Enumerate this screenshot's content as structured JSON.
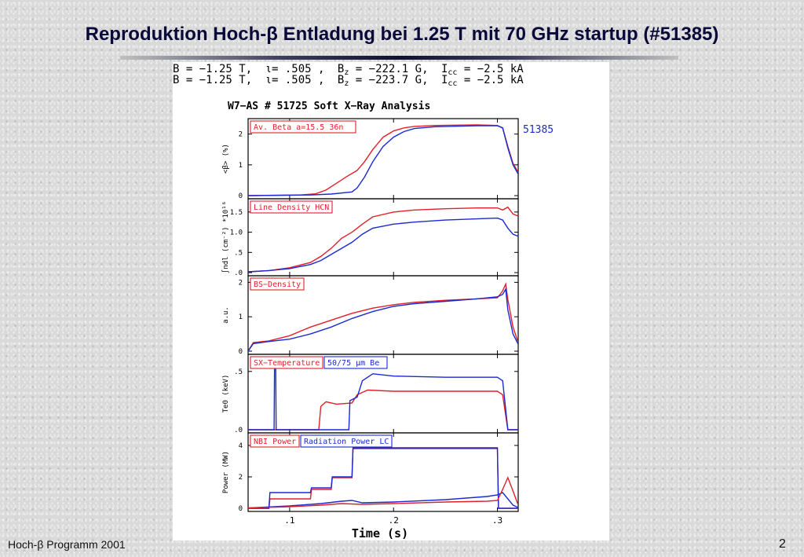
{
  "slide": {
    "title": "Reproduktion Hoch-β Entladung bei 1.25 T mit 70 GHz startup (#51385)",
    "footer_left": "Hoch-β Programm 2001",
    "page_number": "2"
  },
  "header_lines": [
    {
      "b": "B = −1.25  T,",
      "iota": "ι= .505  ,",
      "bz": "B",
      "bz_sub": "z",
      "bz_val": " = −222.1 G,",
      "icc": "I",
      "icc_sub": "cc",
      "icc_val": " = −2.5   kA"
    },
    {
      "b": "B = −1.25  T,",
      "iota": "ι= .505  ,",
      "bz": "B",
      "bz_sub": "z",
      "bz_val": " = −223.7 G,",
      "icc": "I",
      "icc_sub": "cc",
      "icc_val": " = −2.5   kA"
    }
  ],
  "colors": {
    "red": "#e0202a",
    "blue": "#1a2ad0",
    "frame": "#000000"
  },
  "chart_data": {
    "type": "line",
    "title": "W7−AS # 51725   Soft X−Ray Analysis",
    "xlabel": "Time (s)",
    "xlim": [
      0.06,
      0.32
    ],
    "xticks": [
      ".1",
      ".2",
      ".3"
    ],
    "xtick_values": [
      0.1,
      0.2,
      0.3
    ],
    "blue_label": "51385",
    "panels": [
      {
        "id": "beta",
        "ylabel": "<β> (%)",
        "ylim": [
          0,
          2.4
        ],
        "yticks": [
          {
            "v": 0,
            "t": "0"
          },
          {
            "v": 1,
            "t": "1"
          },
          {
            "v": 2,
            "t": "2"
          }
        ],
        "labels": [
          {
            "text": "Av. Beta  a=15.5  36n",
            "color": "red"
          }
        ],
        "series": [
          {
            "name": "red",
            "color": "red",
            "points": [
              [
                0.06,
                0.0
              ],
              [
                0.11,
                0.02
              ],
              [
                0.125,
                0.06
              ],
              [
                0.135,
                0.18
              ],
              [
                0.145,
                0.4
              ],
              [
                0.155,
                0.62
              ],
              [
                0.165,
                0.82
              ],
              [
                0.172,
                1.1
              ],
              [
                0.18,
                1.5
              ],
              [
                0.19,
                1.9
              ],
              [
                0.2,
                2.1
              ],
              [
                0.21,
                2.2
              ],
              [
                0.22,
                2.25
              ],
              [
                0.24,
                2.28
              ],
              [
                0.28,
                2.3
              ],
              [
                0.3,
                2.28
              ],
              [
                0.305,
                2.2
              ],
              [
                0.31,
                1.6
              ],
              [
                0.315,
                1.05
              ],
              [
                0.32,
                0.75
              ]
            ]
          },
          {
            "name": "blue",
            "color": "blue",
            "points": [
              [
                0.06,
                0.0
              ],
              [
                0.12,
                0.02
              ],
              [
                0.14,
                0.05
              ],
              [
                0.16,
                0.12
              ],
              [
                0.165,
                0.25
              ],
              [
                0.172,
                0.6
              ],
              [
                0.18,
                1.1
              ],
              [
                0.19,
                1.6
              ],
              [
                0.2,
                1.9
              ],
              [
                0.21,
                2.08
              ],
              [
                0.22,
                2.18
              ],
              [
                0.24,
                2.24
              ],
              [
                0.28,
                2.27
              ],
              [
                0.3,
                2.27
              ],
              [
                0.305,
                2.2
              ],
              [
                0.31,
                1.55
              ],
              [
                0.315,
                1.0
              ],
              [
                0.32,
                0.7
              ]
            ]
          }
        ]
      },
      {
        "id": "density",
        "ylabel": "∫ndl (cm⁻²) *10¹⁶",
        "ylim": [
          0,
          1.75
        ],
        "yticks": [
          {
            "v": 0,
            "t": ".0"
          },
          {
            "v": 0.5,
            "t": ".5"
          },
          {
            "v": 1.0,
            "t": "1.0"
          },
          {
            "v": 1.5,
            "t": "1.5"
          }
        ],
        "labels": [
          {
            "text": "Line Density HCN",
            "color": "red"
          }
        ],
        "series": [
          {
            "name": "red",
            "color": "red",
            "points": [
              [
                0.06,
                0.02
              ],
              [
                0.08,
                0.05
              ],
              [
                0.1,
                0.12
              ],
              [
                0.12,
                0.25
              ],
              [
                0.13,
                0.4
              ],
              [
                0.14,
                0.6
              ],
              [
                0.15,
                0.85
              ],
              [
                0.16,
                1.0
              ],
              [
                0.17,
                1.2
              ],
              [
                0.18,
                1.38
              ],
              [
                0.2,
                1.5
              ],
              [
                0.22,
                1.55
              ],
              [
                0.25,
                1.58
              ],
              [
                0.28,
                1.6
              ],
              [
                0.3,
                1.6
              ],
              [
                0.305,
                1.55
              ],
              [
                0.31,
                1.62
              ],
              [
                0.315,
                1.45
              ],
              [
                0.32,
                1.4
              ]
            ]
          },
          {
            "name": "blue",
            "color": "blue",
            "points": [
              [
                0.06,
                0.02
              ],
              [
                0.08,
                0.05
              ],
              [
                0.1,
                0.1
              ],
              [
                0.12,
                0.2
              ],
              [
                0.13,
                0.3
              ],
              [
                0.14,
                0.45
              ],
              [
                0.15,
                0.6
              ],
              [
                0.16,
                0.75
              ],
              [
                0.17,
                0.95
              ],
              [
                0.18,
                1.1
              ],
              [
                0.2,
                1.2
              ],
              [
                0.22,
                1.25
              ],
              [
                0.25,
                1.3
              ],
              [
                0.28,
                1.33
              ],
              [
                0.3,
                1.35
              ],
              [
                0.305,
                1.3
              ],
              [
                0.31,
                1.1
              ],
              [
                0.315,
                0.95
              ],
              [
                0.32,
                0.9
              ]
            ]
          }
        ]
      },
      {
        "id": "bs",
        "ylabel": "a.u.",
        "ylim": [
          0,
          2.1
        ],
        "yticks": [
          {
            "v": 0,
            "t": "0"
          },
          {
            "v": 1,
            "t": "1"
          },
          {
            "v": 2,
            "t": "2"
          }
        ],
        "labels": [
          {
            "text": "BS−Density",
            "color": "red"
          }
        ],
        "series": [
          {
            "name": "red",
            "color": "red",
            "points": [
              [
                0.06,
                0.0
              ],
              [
                0.065,
                0.25
              ],
              [
                0.08,
                0.3
              ],
              [
                0.1,
                0.45
              ],
              [
                0.12,
                0.7
              ],
              [
                0.14,
                0.9
              ],
              [
                0.16,
                1.1
              ],
              [
                0.18,
                1.25
              ],
              [
                0.2,
                1.35
              ],
              [
                0.22,
                1.42
              ],
              [
                0.25,
                1.48
              ],
              [
                0.28,
                1.52
              ],
              [
                0.3,
                1.55
              ],
              [
                0.305,
                1.75
              ],
              [
                0.308,
                1.95
              ],
              [
                0.31,
                1.5
              ],
              [
                0.315,
                0.7
              ],
              [
                0.32,
                0.25
              ]
            ]
          },
          {
            "name": "blue",
            "color": "blue",
            "points": [
              [
                0.06,
                0.0
              ],
              [
                0.065,
                0.22
              ],
              [
                0.08,
                0.28
              ],
              [
                0.1,
                0.35
              ],
              [
                0.12,
                0.5
              ],
              [
                0.14,
                0.7
              ],
              [
                0.16,
                0.95
              ],
              [
                0.18,
                1.15
              ],
              [
                0.2,
                1.3
              ],
              [
                0.22,
                1.38
              ],
              [
                0.25,
                1.45
              ],
              [
                0.28,
                1.52
              ],
              [
                0.3,
                1.58
              ],
              [
                0.305,
                1.65
              ],
              [
                0.308,
                1.8
              ],
              [
                0.31,
                1.2
              ],
              [
                0.315,
                0.5
              ],
              [
                0.32,
                0.2
              ]
            ]
          }
        ]
      },
      {
        "id": "te",
        "ylabel": "Te0 (keV)",
        "ylim": [
          0,
          0.62
        ],
        "yticks": [
          {
            "v": 0,
            "t": ".0"
          },
          {
            "v": 0.5,
            "t": ".5"
          }
        ],
        "labels": [
          {
            "text": "SX−Temperature",
            "color": "red"
          },
          {
            "text": "50/75  μm Be",
            "color": "blue"
          }
        ],
        "series": [
          {
            "name": "red",
            "color": "red",
            "points": [
              [
                0.06,
                0.0
              ],
              [
                0.128,
                0.0
              ],
              [
                0.13,
                0.2
              ],
              [
                0.135,
                0.24
              ],
              [
                0.145,
                0.22
              ],
              [
                0.16,
                0.23
              ],
              [
                0.165,
                0.3
              ],
              [
                0.175,
                0.34
              ],
              [
                0.2,
                0.33
              ],
              [
                0.25,
                0.33
              ],
              [
                0.3,
                0.33
              ],
              [
                0.305,
                0.3
              ],
              [
                0.31,
                0.0
              ],
              [
                0.32,
                0.0
              ]
            ]
          },
          {
            "name": "blue",
            "color": "blue",
            "points": [
              [
                0.06,
                0.0
              ],
              [
                0.085,
                0.0
              ],
              [
                0.0855,
                0.6
              ],
              [
                0.0865,
                0.6
              ],
              [
                0.087,
                0.0
              ],
              [
                0.157,
                0.0
              ],
              [
                0.158,
                0.25
              ],
              [
                0.165,
                0.28
              ],
              [
                0.17,
                0.42
              ],
              [
                0.18,
                0.48
              ],
              [
                0.2,
                0.46
              ],
              [
                0.25,
                0.45
              ],
              [
                0.3,
                0.45
              ],
              [
                0.305,
                0.42
              ],
              [
                0.31,
                0.0
              ],
              [
                0.32,
                0.0
              ]
            ]
          }
        ]
      },
      {
        "id": "power",
        "ylabel": "Power (MW)",
        "ylim": [
          0,
          4.6
        ],
        "yticks": [
          {
            "v": 0,
            "t": "0"
          },
          {
            "v": 2,
            "t": "2"
          },
          {
            "v": 4,
            "t": "4"
          }
        ],
        "labels": [
          {
            "text": "NBI Power",
            "color": "red"
          },
          {
            "text": "Radiation Power LC",
            "color": "blue"
          }
        ],
        "series": [
          {
            "name": "red-nbi",
            "color": "red",
            "points": [
              [
                0.06,
                0.0
              ],
              [
                0.08,
                0.0
              ],
              [
                0.081,
                0.6
              ],
              [
                0.12,
                0.6
              ],
              [
                0.121,
                1.2
              ],
              [
                0.14,
                1.2
              ],
              [
                0.141,
                1.95
              ],
              [
                0.16,
                1.95
              ],
              [
                0.161,
                3.8
              ],
              [
                0.3,
                3.8
              ],
              [
                0.301,
                0.0
              ],
              [
                0.32,
                0.0
              ]
            ]
          },
          {
            "name": "blue-nbi",
            "color": "blue",
            "points": [
              [
                0.06,
                0.0
              ],
              [
                0.08,
                0.0
              ],
              [
                0.081,
                1.0
              ],
              [
                0.12,
                1.0
              ],
              [
                0.121,
                1.3
              ],
              [
                0.14,
                1.3
              ],
              [
                0.141,
                2.0
              ],
              [
                0.16,
                2.0
              ],
              [
                0.161,
                3.85
              ],
              [
                0.3,
                3.85
              ],
              [
                0.301,
                0.0
              ],
              [
                0.32,
                0.0
              ]
            ]
          },
          {
            "name": "blue-rad",
            "color": "blue",
            "points": [
              [
                0.06,
                0.02
              ],
              [
                0.1,
                0.15
              ],
              [
                0.13,
                0.3
              ],
              [
                0.15,
                0.45
              ],
              [
                0.16,
                0.5
              ],
              [
                0.17,
                0.35
              ],
              [
                0.2,
                0.4
              ],
              [
                0.25,
                0.55
              ],
              [
                0.29,
                0.75
              ],
              [
                0.3,
                0.85
              ],
              [
                0.305,
                1.0
              ],
              [
                0.31,
                0.6
              ],
              [
                0.315,
                0.2
              ],
              [
                0.32,
                0.05
              ]
            ]
          },
          {
            "name": "red-rad",
            "color": "red",
            "points": [
              [
                0.06,
                0.02
              ],
              [
                0.1,
                0.1
              ],
              [
                0.13,
                0.2
              ],
              [
                0.15,
                0.3
              ],
              [
                0.17,
                0.25
              ],
              [
                0.2,
                0.3
              ],
              [
                0.25,
                0.4
              ],
              [
                0.29,
                0.45
              ],
              [
                0.3,
                0.5
              ],
              [
                0.305,
                1.2
              ],
              [
                0.31,
                1.95
              ],
              [
                0.315,
                1.1
              ],
              [
                0.32,
                0.2
              ]
            ]
          }
        ]
      }
    ]
  }
}
